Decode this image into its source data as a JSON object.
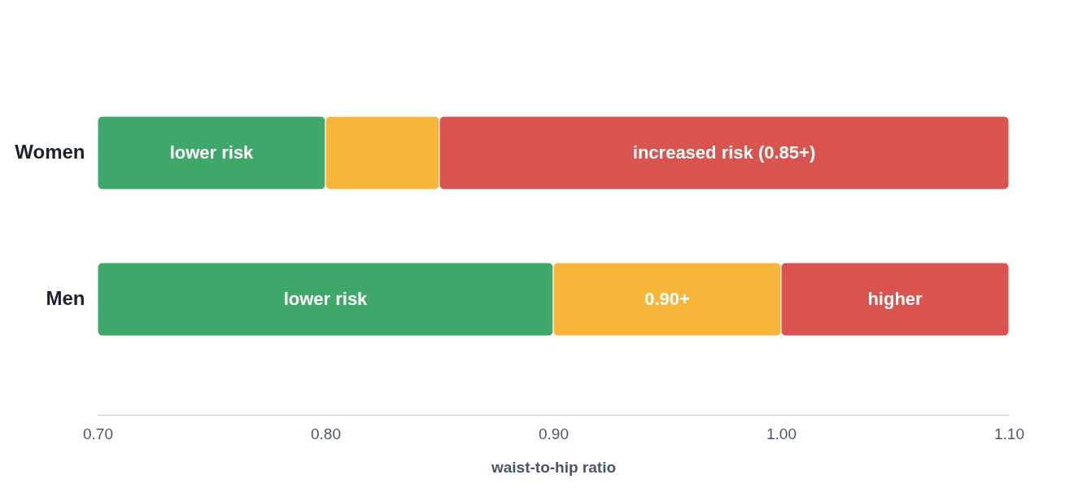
{
  "chart_data": {
    "type": "bar",
    "orientation": "horizontal",
    "xlabel": "waist-to-hip ratio",
    "categories": [
      "Women",
      "Men"
    ],
    "series": [
      {
        "color": "#3fa76a",
        "base": [
          0.7,
          0.7
        ],
        "values": [
          0.1,
          0.2
        ],
        "value_labels": [
          "lower risk",
          "lower risk"
        ]
      },
      {
        "color": "#f7b53a",
        "base": [
          0.8,
          0.9
        ],
        "values": [
          0.05,
          0.1
        ],
        "value_labels": [
          null,
          "0.90+"
        ]
      },
      {
        "color": "#d9544e",
        "base": [
          0.85,
          1.0
        ],
        "values": [
          0.25,
          0.1
        ],
        "value_labels": [
          "increased risk (0.85+)",
          "higher"
        ]
      }
    ],
    "xlim": [
      0.7,
      1.1
    ],
    "xticks": [
      {
        "value": 0.7,
        "label": "0.70"
      },
      {
        "value": 0.8,
        "label": "0.80"
      },
      {
        "value": 0.9,
        "label": "0.90"
      },
      {
        "value": 1.0,
        "label": "1.00"
      },
      {
        "value": 1.1,
        "label": "1.10"
      }
    ]
  }
}
